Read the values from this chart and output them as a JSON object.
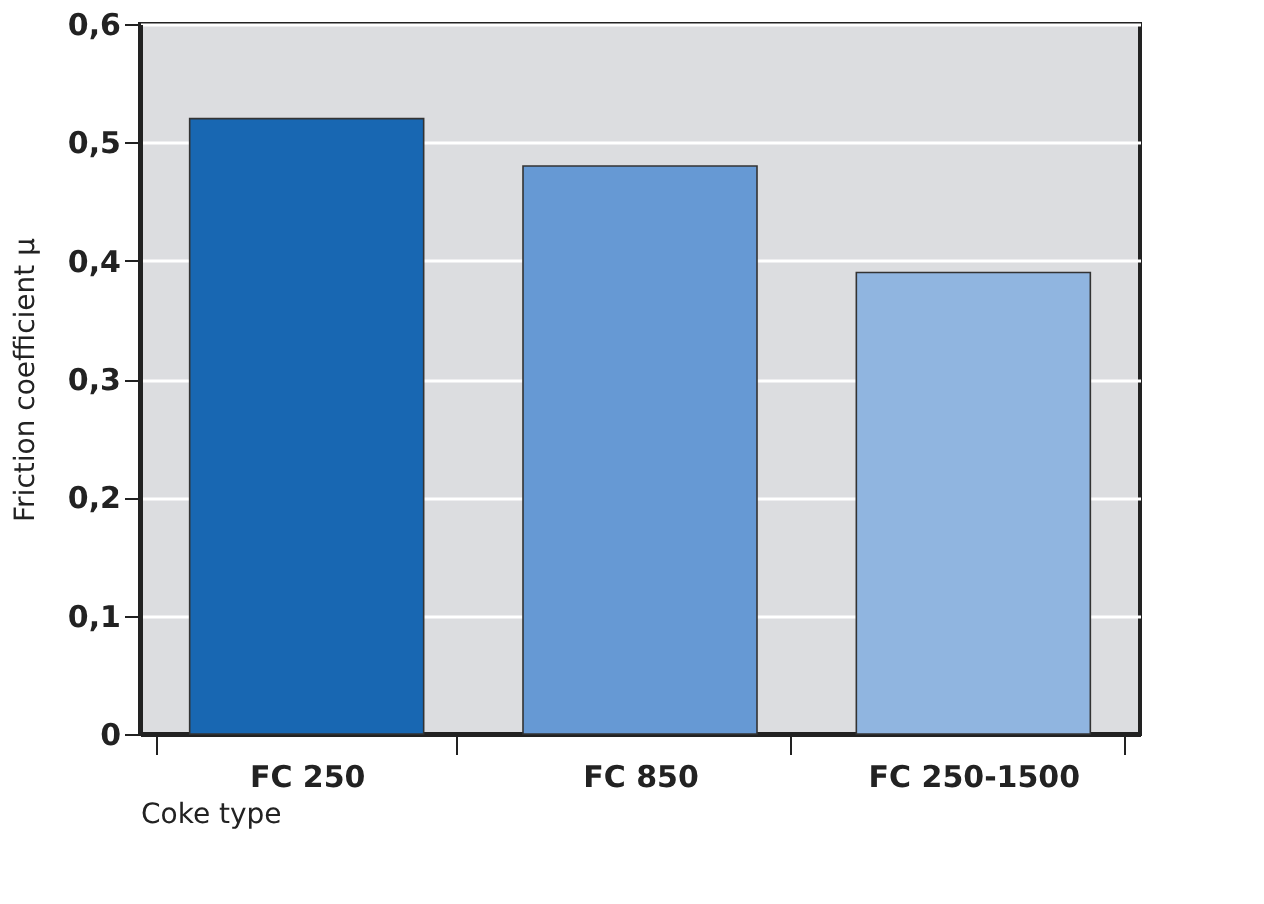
{
  "chart_data": {
    "type": "bar",
    "xlabel": "Coke type",
    "ylabel": "Friction coefficient µ",
    "categories": [
      "FC 250",
      "FC 850",
      "FC 250-1500"
    ],
    "values": [
      0.52,
      0.48,
      0.39
    ],
    "colors": [
      "#1867b2",
      "#6699d4",
      "#90b5e0"
    ],
    "ylim": [
      0,
      0.6
    ],
    "yticks": [
      0,
      {
        "value": 0.1,
        "label": "0,1"
      },
      {
        "value": 0.2,
        "label": "0,2"
      },
      {
        "value": 0.3,
        "label": "0,3"
      },
      {
        "value": 0.4,
        "label": "0,4"
      },
      {
        "value": 0.5,
        "label": "0,5"
      },
      {
        "value": 0.6,
        "label": "0,6"
      }
    ],
    "grid": "y"
  }
}
